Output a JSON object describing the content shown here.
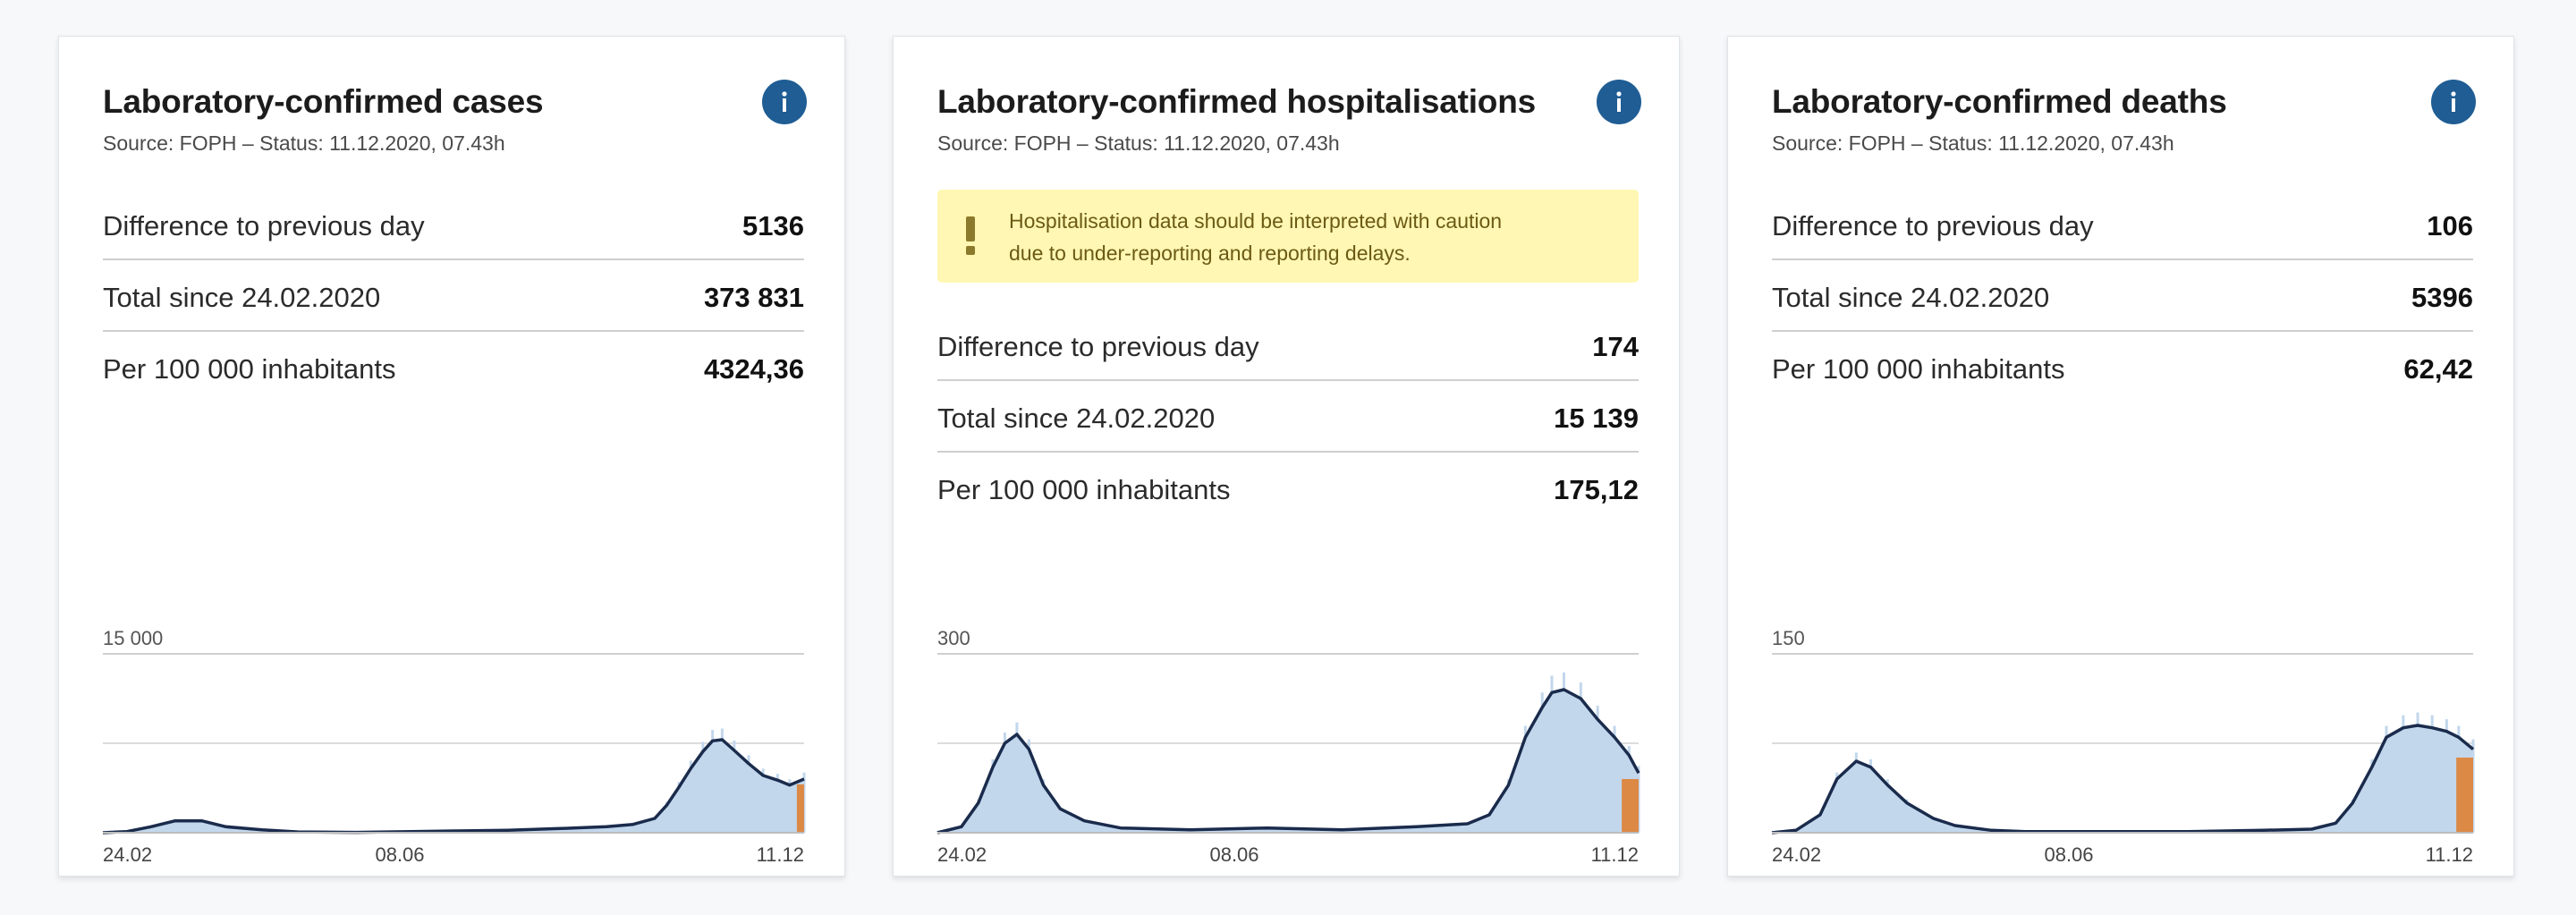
{
  "colors": {
    "info_button": "#1f5d94",
    "bar_fill": "#c2d7ec",
    "line": "#1a2b4c",
    "provisional": "#e07b29",
    "warning_bg": "#fff7b3",
    "warning_icon": "#8c7a2c"
  },
  "cards": [
    {
      "title": "Laboratory-confirmed cases",
      "source": "Source: FOPH – Status: 11.12.2020, 07.43h",
      "rows": [
        {
          "label": "Difference to previous day",
          "value": "5136"
        },
        {
          "label": "Total since 24.02.2020",
          "value": "373 831"
        },
        {
          "label": "Per 100 000 inhabitants",
          "value": "4324,36"
        }
      ]
    },
    {
      "title": "Laboratory-confirmed hospitalisations",
      "source": "Source: FOPH – Status: 11.12.2020, 07.43h",
      "warning": {
        "icon": "exclamation-icon",
        "line1": "Hospitalisation data should be interpreted with caution",
        "line2": "due to under-reporting and reporting delays."
      },
      "rows": [
        {
          "label": "Difference to previous day",
          "value": "174"
        },
        {
          "label": "Total since 24.02.2020",
          "value": "15 139"
        },
        {
          "label": "Per 100 000 inhabitants",
          "value": "175,12"
        }
      ]
    },
    {
      "title": "Laboratory-confirmed deaths",
      "source": "Source: FOPH – Status: 11.12.2020, 07.43h",
      "rows": [
        {
          "label": "Difference to previous day",
          "value": "106"
        },
        {
          "label": "Total since 24.02.2020",
          "value": "5396"
        },
        {
          "label": "Per 100 000 inhabitants",
          "value": "62,42"
        }
      ]
    }
  ],
  "chart_data": [
    {
      "type": "bar",
      "title": "",
      "xlabel": "",
      "ylabel": "",
      "xlim": [
        "2020-02-24",
        "2020-12-11"
      ],
      "x_ticks": [
        "24.02",
        "08.06",
        "11.12"
      ],
      "y_ticks": [
        {
          "value": 15000,
          "label": "15 000"
        }
      ],
      "ylim": [
        0,
        15000
      ],
      "grid": true,
      "series": [
        {
          "x": [
            "2020-02-24",
            "2020-03-05",
            "2020-03-15",
            "2020-03-25",
            "2020-04-05",
            "2020-04-15",
            "2020-04-30",
            "2020-05-15",
            "2020-06-08",
            "2020-07-01",
            "2020-07-20",
            "2020-08-10",
            "2020-09-01",
            "2020-09-20",
            "2020-10-01",
            "2020-10-10",
            "2020-10-15",
            "2020-10-20",
            "2020-10-25",
            "2020-10-30",
            "2020-11-03",
            "2020-11-07",
            "2020-11-12",
            "2020-11-18",
            "2020-11-24",
            "2020-11-30",
            "2020-12-05",
            "2020-12-11"
          ],
          "values": [
            0,
            100,
            500,
            1000,
            1000,
            500,
            250,
            70,
            30,
            100,
            150,
            200,
            350,
            500,
            700,
            1200,
            2300,
            3800,
            5400,
            6800,
            7700,
            7800,
            6900,
            5800,
            4800,
            4400,
            4000,
            4500
          ]
        }
      ],
      "provisional_from": "2020-12-08"
    },
    {
      "type": "bar",
      "title": "",
      "xlabel": "",
      "ylabel": "",
      "xlim": [
        "2020-02-24",
        "2020-12-11"
      ],
      "x_ticks": [
        "24.02",
        "08.06",
        "11.12"
      ],
      "y_ticks": [
        {
          "value": 300,
          "label": "300"
        }
      ],
      "ylim": [
        0,
        300
      ],
      "grid": true,
      "series": [
        {
          "x": [
            "2020-02-24",
            "2020-03-05",
            "2020-03-12",
            "2020-03-18",
            "2020-03-23",
            "2020-03-28",
            "2020-04-02",
            "2020-04-08",
            "2020-04-15",
            "2020-04-25",
            "2020-05-10",
            "2020-06-08",
            "2020-07-10",
            "2020-08-10",
            "2020-09-10",
            "2020-10-01",
            "2020-10-10",
            "2020-10-18",
            "2020-10-25",
            "2020-11-01",
            "2020-11-05",
            "2020-11-10",
            "2020-11-17",
            "2020-11-24",
            "2020-12-01",
            "2020-12-07",
            "2020-12-11"
          ],
          "values": [
            0,
            10,
            50,
            110,
            150,
            165,
            140,
            80,
            40,
            20,
            8,
            5,
            8,
            5,
            10,
            15,
            30,
            80,
            160,
            210,
            235,
            240,
            225,
            190,
            160,
            130,
            100
          ]
        }
      ],
      "provisional_from": "2020-12-04"
    },
    {
      "type": "bar",
      "title": "",
      "xlabel": "",
      "ylabel": "",
      "xlim": [
        "2020-02-24",
        "2020-12-11"
      ],
      "x_ticks": [
        "24.02",
        "08.06",
        "11.12"
      ],
      "y_ticks": [
        {
          "value": 150,
          "label": "150"
        }
      ],
      "ylim": [
        0,
        150
      ],
      "grid": true,
      "series": [
        {
          "x": [
            "2020-02-24",
            "2020-03-05",
            "2020-03-15",
            "2020-03-22",
            "2020-03-30",
            "2020-04-05",
            "2020-04-12",
            "2020-04-20",
            "2020-05-01",
            "2020-05-10",
            "2020-05-25",
            "2020-06-08",
            "2020-07-15",
            "2020-08-15",
            "2020-09-15",
            "2020-10-05",
            "2020-10-15",
            "2020-10-22",
            "2020-10-30",
            "2020-11-05",
            "2020-11-12",
            "2020-11-18",
            "2020-11-24",
            "2020-11-30",
            "2020-12-05",
            "2020-12-11"
          ],
          "values": [
            0,
            2,
            15,
            45,
            60,
            55,
            40,
            25,
            12,
            6,
            2,
            1,
            1,
            1,
            2,
            3,
            8,
            25,
            55,
            80,
            88,
            90,
            88,
            85,
            80,
            70
          ]
        }
      ],
      "provisional_from": "2020-12-04"
    }
  ]
}
